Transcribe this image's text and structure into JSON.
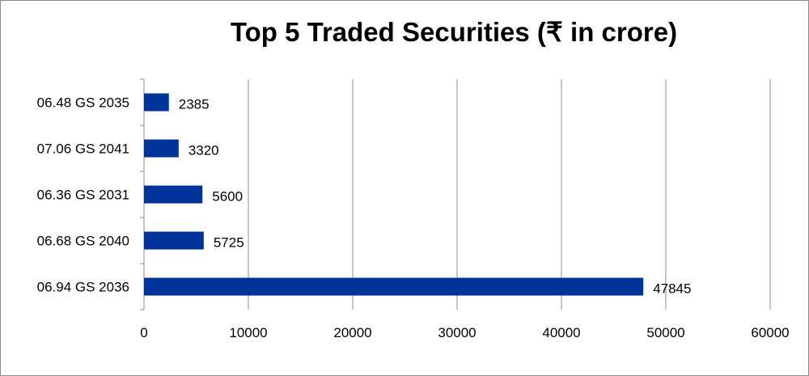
{
  "chart_data": {
    "type": "bar",
    "orientation": "horizontal",
    "title": "Top 5 Traded Securities (₹ in crore)",
    "categories": [
      "06.48 GS 2035",
      "07.06 GS 2041",
      "06.36 GS 2031",
      "06.68 GS 2040",
      "06.94 GS 2036"
    ],
    "values": [
      2385,
      3320,
      5600,
      5725,
      47845
    ],
    "data_labels": [
      "2385",
      "3320",
      "5600",
      "5725",
      "47845"
    ],
    "xlim": [
      0,
      60000
    ],
    "x_ticks": [
      "0",
      "10000",
      "20000",
      "30000",
      "40000",
      "50000",
      "60000"
    ],
    "grid": true,
    "legend": "none",
    "bar_color": "#003399",
    "grid_color": "#8c8c8c"
  }
}
